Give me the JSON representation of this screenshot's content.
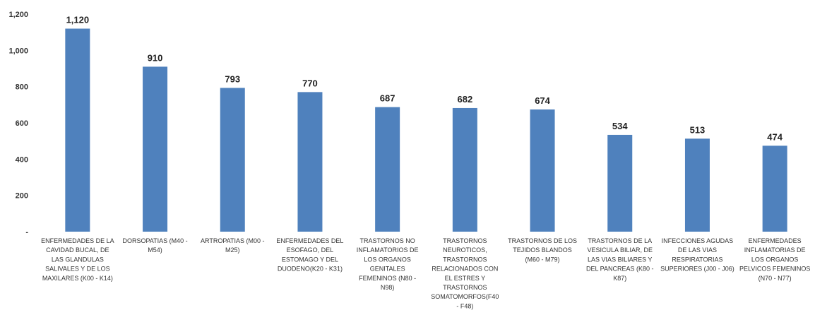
{
  "chart_data": {
    "type": "bar",
    "title": "",
    "xlabel": "",
    "ylabel": "",
    "ylim": [
      0,
      1200
    ],
    "grid": false,
    "legend": "none",
    "bar_color": "#4F81BD",
    "y_tick_labels": [
      "-",
      "200",
      "400",
      "600",
      "800",
      "1,000",
      "1,200"
    ],
    "categories": [
      [
        "ENFERMEDADES DE LA",
        "CAVIDAD BUCAL, DE",
        "LAS GLANDULAS",
        "SALIVALES Y DE LOS",
        "MAXILARES (K00 - K14)"
      ],
      [
        "DORSOPATIAS (M40 -",
        "M54)"
      ],
      [
        "ARTROPATIAS (M00 -",
        "M25)"
      ],
      [
        "ENFERMEDADES DEL",
        "ESOFAGO, DEL",
        "ESTOMAGO Y DEL",
        "DUODENO(K20 - K31)"
      ],
      [
        "TRASTORNOS NO",
        "INFLAMATORIOS DE",
        "LOS ORGANOS",
        "GENITALES",
        "FEMENINOS (N80 -",
        "N98)"
      ],
      [
        "TRASTORNOS",
        "NEUROTICOS,",
        "TRASTORNOS",
        "RELACIONADOS CON",
        "EL ESTRES Y",
        "TRASTORNOS",
        "SOMATOMORFOS(F40",
        "- F48)"
      ],
      [
        "TRASTORNOS DE LOS",
        "TEJIDOS BLANDOS",
        "(M60 - M79)"
      ],
      [
        "TRASTORNOS DE LA",
        "VESICULA BILIAR, DE",
        "LAS VIAS BILIARES Y",
        "DEL PANCREAS (K80 -",
        "K87)"
      ],
      [
        "INFECCIONES AGUDAS",
        "DE LAS VIAS",
        "RESPIRATORIAS",
        "SUPERIORES (J00 - J06)"
      ],
      [
        "ENFERMEDADES",
        "INFLAMATORIAS DE",
        "LOS ORGANOS",
        "PELVICOS FEMENINOS",
        "(N70 - N77)"
      ]
    ],
    "values": [
      1120,
      910,
      793,
      770,
      687,
      682,
      674,
      534,
      513,
      474
    ],
    "value_labels": [
      "1,120",
      "910",
      "793",
      "770",
      "687",
      "682",
      "674",
      "534",
      "513",
      "474"
    ]
  }
}
